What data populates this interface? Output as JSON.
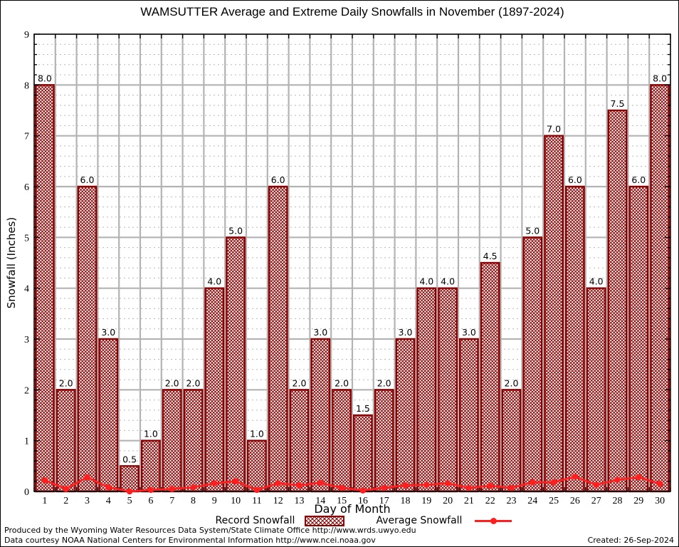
{
  "title": "WAMSUTTER Average and Extreme Daily Snowfalls in November (1897-2024)",
  "chart_data": {
    "type": "bar",
    "title": "WAMSUTTER Average and Extreme Daily Snowfalls in November (1897-2024)",
    "xlabel": "Day of Month",
    "ylabel": "Snowfall (Inches)",
    "categories": [
      1,
      2,
      3,
      4,
      5,
      6,
      7,
      8,
      9,
      10,
      11,
      12,
      13,
      14,
      15,
      16,
      17,
      18,
      19,
      20,
      21,
      22,
      23,
      24,
      25,
      26,
      27,
      28,
      29,
      30
    ],
    "series": [
      {
        "name": "Record Snowfall",
        "type": "bar",
        "values": [
          8.0,
          2.0,
          6.0,
          3.0,
          0.5,
          1.0,
          2.0,
          2.0,
          4.0,
          5.0,
          1.0,
          6.0,
          2.0,
          3.0,
          2.0,
          1.5,
          2.0,
          3.0,
          4.0,
          4.0,
          3.0,
          4.5,
          2.0,
          5.0,
          7.0,
          6.0,
          4.0,
          7.5,
          6.0,
          8.0
        ]
      },
      {
        "name": "Average Snowfall",
        "type": "line",
        "values": [
          0.22,
          0.05,
          0.28,
          0.08,
          0.0,
          0.03,
          0.05,
          0.08,
          0.16,
          0.2,
          0.03,
          0.16,
          0.12,
          0.17,
          0.07,
          0.02,
          0.07,
          0.12,
          0.13,
          0.16,
          0.07,
          0.11,
          0.07,
          0.18,
          0.18,
          0.29,
          0.13,
          0.23,
          0.28,
          0.15
        ]
      }
    ],
    "ylim": [
      0,
      9
    ],
    "yticks": [
      0,
      1,
      2,
      3,
      4,
      5,
      6,
      7,
      8,
      9
    ],
    "y_minor_step": 0.2,
    "grid": "major solid gray, minor dashed gray, vertical lines at day boundaries",
    "bar_labels_format": "one-decimal",
    "legend_position": "bottom"
  },
  "footer": {
    "line1": "Produced by the Wyoming Water Resources Data System/State Climate Office http://www.wrds.uwyo.edu",
    "line2": "Data courtesy NOAA National Centers for Environmental Information http://www.ncei.noaa.gov",
    "created": "Created: 26-Sep-2024"
  },
  "colors": {
    "bar_border": "#8b0000",
    "bar_hatch": "#8b0000",
    "avg_line": "#ff1f1f",
    "grid_major": "#b3b3b3",
    "grid_minor": "#b8b8b8",
    "axis": "#000000",
    "text": "#000000"
  }
}
